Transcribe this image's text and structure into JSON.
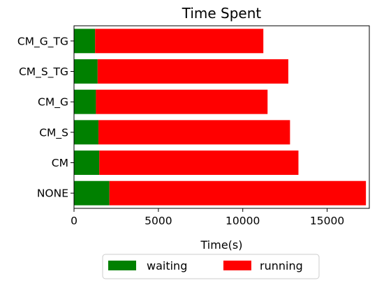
{
  "chart_data": {
    "type": "bar",
    "orientation": "horizontal",
    "stacked": true,
    "title": "Time Spent",
    "xlabel": "Time(s)",
    "ylabel": "",
    "xlim": [
      0,
      17500
    ],
    "xticks": [
      0,
      5000,
      10000,
      15000
    ],
    "grid": false,
    "legend_position": "bottom-center",
    "categories": [
      "CM_G_TG",
      "CM_S_TG",
      "CM_G",
      "CM_S",
      "CM",
      "NONE"
    ],
    "series": [
      {
        "name": "waiting",
        "color": "#008000",
        "values": [
          1250,
          1400,
          1300,
          1450,
          1500,
          2100
        ]
      },
      {
        "name": "running",
        "color": "#ff0000",
        "values": [
          9970,
          11300,
          10170,
          11350,
          11800,
          15200
        ]
      }
    ]
  }
}
